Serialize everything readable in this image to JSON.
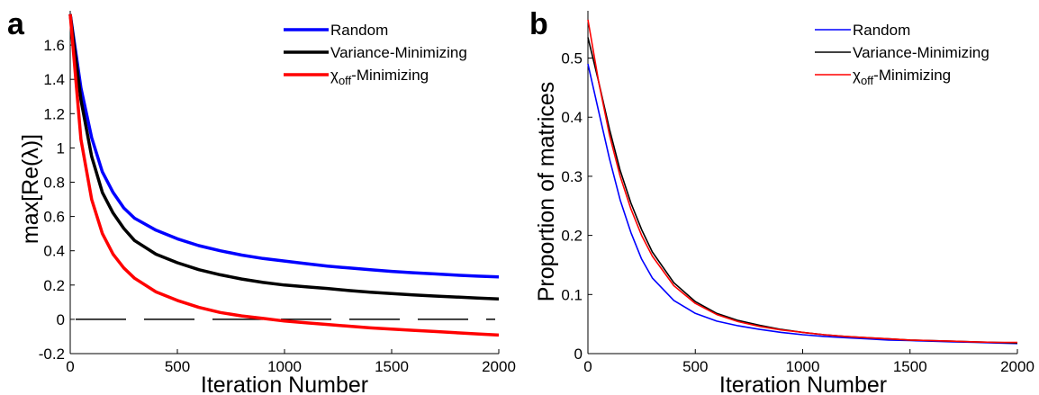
{
  "chart_data": [
    {
      "type": "line",
      "panel_label": "a",
      "xlabel": "Iteration Number",
      "ylabel": "max[Re(λ)]",
      "xlim": [
        0,
        2000
      ],
      "ylim": [
        -0.2,
        1.8
      ],
      "xticks": [
        "0",
        "500",
        "1000",
        "1500",
        "2000"
      ],
      "yticks": [
        "-0.2",
        "0",
        "0.2",
        "0.4",
        "0.6",
        "0.8",
        "1",
        "1.2",
        "1.4",
        "1.6"
      ],
      "legend": {
        "placement": "top-right"
      },
      "x": [
        0,
        50,
        100,
        150,
        200,
        250,
        300,
        400,
        500,
        600,
        700,
        800,
        900,
        1000,
        1100,
        1200,
        1300,
        1400,
        1500,
        1600,
        1700,
        1800,
        1900,
        2000
      ],
      "series": [
        {
          "name": "Random",
          "legend_text": "Random",
          "color": "#0000ff",
          "values": [
            1.78,
            1.35,
            1.06,
            0.86,
            0.74,
            0.65,
            0.59,
            0.52,
            0.47,
            0.43,
            0.4,
            0.375,
            0.355,
            0.34,
            0.325,
            0.31,
            0.3,
            0.29,
            0.28,
            0.272,
            0.265,
            0.258,
            0.252,
            0.247
          ]
        },
        {
          "name": "Variance-Minimizing",
          "legend_text": "Variance-Minimizing",
          "color": "#000000",
          "values": [
            1.78,
            1.28,
            0.95,
            0.74,
            0.62,
            0.53,
            0.46,
            0.38,
            0.33,
            0.29,
            0.26,
            0.235,
            0.215,
            0.2,
            0.19,
            0.18,
            0.168,
            0.158,
            0.15,
            0.142,
            0.136,
            0.13,
            0.124,
            0.119
          ]
        },
        {
          "name": "χoff-Minimizing",
          "legend_text": "χ",
          "legend_sub": "off",
          "legend_suffix": "-Minimizing",
          "color": "#ff0000",
          "values": [
            1.78,
            1.05,
            0.7,
            0.5,
            0.38,
            0.3,
            0.24,
            0.16,
            0.11,
            0.07,
            0.04,
            0.02,
            0.005,
            -0.01,
            -0.02,
            -0.03,
            -0.04,
            -0.05,
            -0.057,
            -0.064,
            -0.071,
            -0.078,
            -0.085,
            -0.092
          ]
        }
      ],
      "reference_line": {
        "y": 0,
        "style": "dashed",
        "color": "#000000"
      }
    },
    {
      "type": "line",
      "panel_label": "b",
      "xlabel": "Iteration Number",
      "ylabel": "Proportion of matrices",
      "xlim": [
        0,
        2000
      ],
      "ylim": [
        0,
        0.58
      ],
      "xticks": [
        "0",
        "500",
        "1000",
        "1500",
        "2000"
      ],
      "yticks": [
        "0",
        "0.1",
        "0.2",
        "0.3",
        "0.4",
        "0.5"
      ],
      "legend": {
        "placement": "top-right"
      },
      "x": [
        0,
        50,
        100,
        150,
        200,
        250,
        300,
        400,
        500,
        600,
        700,
        800,
        900,
        1000,
        1100,
        1200,
        1300,
        1400,
        1500,
        1600,
        1700,
        1800,
        1900,
        2000
      ],
      "series": [
        {
          "name": "Random",
          "legend_text": "Random",
          "color": "#0000ff",
          "values": [
            0.49,
            0.41,
            0.33,
            0.26,
            0.205,
            0.16,
            0.128,
            0.09,
            0.068,
            0.055,
            0.047,
            0.041,
            0.036,
            0.032,
            0.029,
            0.027,
            0.025,
            0.023,
            0.022,
            0.021,
            0.02,
            0.019,
            0.018,
            0.017
          ]
        },
        {
          "name": "Variance-Minimizing",
          "legend_text": "Variance-Minimizing",
          "color": "#000000",
          "values": [
            0.535,
            0.46,
            0.38,
            0.31,
            0.255,
            0.21,
            0.172,
            0.12,
            0.088,
            0.068,
            0.056,
            0.048,
            0.041,
            0.036,
            0.032,
            0.029,
            0.027,
            0.025,
            0.023,
            0.022,
            0.021,
            0.02,
            0.019,
            0.018
          ]
        },
        {
          "name": "χoff-Minimizing",
          "legend_text": "χ",
          "legend_sub": "off",
          "legend_suffix": "-Minimizing",
          "color": "#ff0000",
          "values": [
            0.565,
            0.46,
            0.37,
            0.3,
            0.245,
            0.2,
            0.165,
            0.115,
            0.085,
            0.066,
            0.054,
            0.046,
            0.04,
            0.036,
            0.032,
            0.029,
            0.027,
            0.025,
            0.023,
            0.022,
            0.021,
            0.02,
            0.019,
            0.019
          ]
        }
      ]
    }
  ]
}
